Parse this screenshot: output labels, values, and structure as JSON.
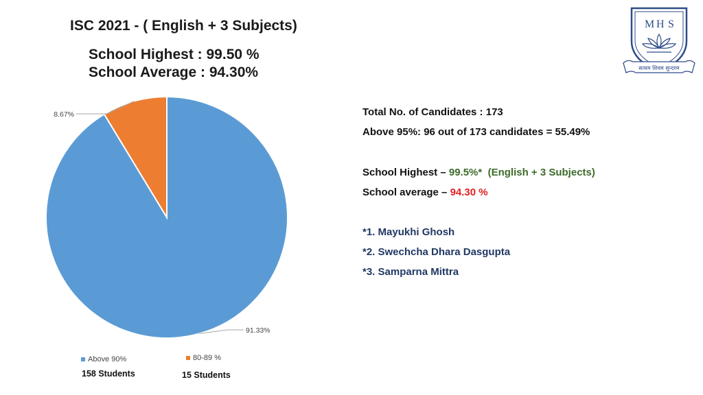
{
  "header": {
    "title": "ISC 2021 - ( English + 3 Subjects)",
    "school_highest": "School Highest : 99.50 %",
    "school_average": "School Average : 94.30%"
  },
  "logo": {
    "letters": [
      "M",
      "H",
      "S"
    ],
    "motto": "सत्यम शिवम सुन्दरम",
    "icon": "lotus-shield-emblem"
  },
  "chart_data": {
    "type": "pie",
    "categories": [
      "Above 90%",
      "80-89 %"
    ],
    "values": [
      91.33,
      8.67
    ],
    "data_labels": [
      "91.33%",
      "8.67%"
    ],
    "counts": [
      "158 Students",
      "15 Students"
    ],
    "colors": [
      "#5b9bd5",
      "#ed7d31"
    ],
    "legend_position": "bottom"
  },
  "stats": {
    "total_label": "Total No. of Candidates  :  173",
    "above95_label": "Above 95%: 96 out of 173 candidates = 55.49%",
    "highest_prefix": "School Highest – ",
    "highest_value": "99.5%*",
    "highest_suffix": "(English + 3 Subjects)",
    "average_prefix": "School average – ",
    "average_value": "94.30 %",
    "toppers": [
      "*1. Mayukhi Ghosh",
      "*2. Swechcha Dhara Dasgupta",
      "*3. Samparna Mittra"
    ]
  }
}
